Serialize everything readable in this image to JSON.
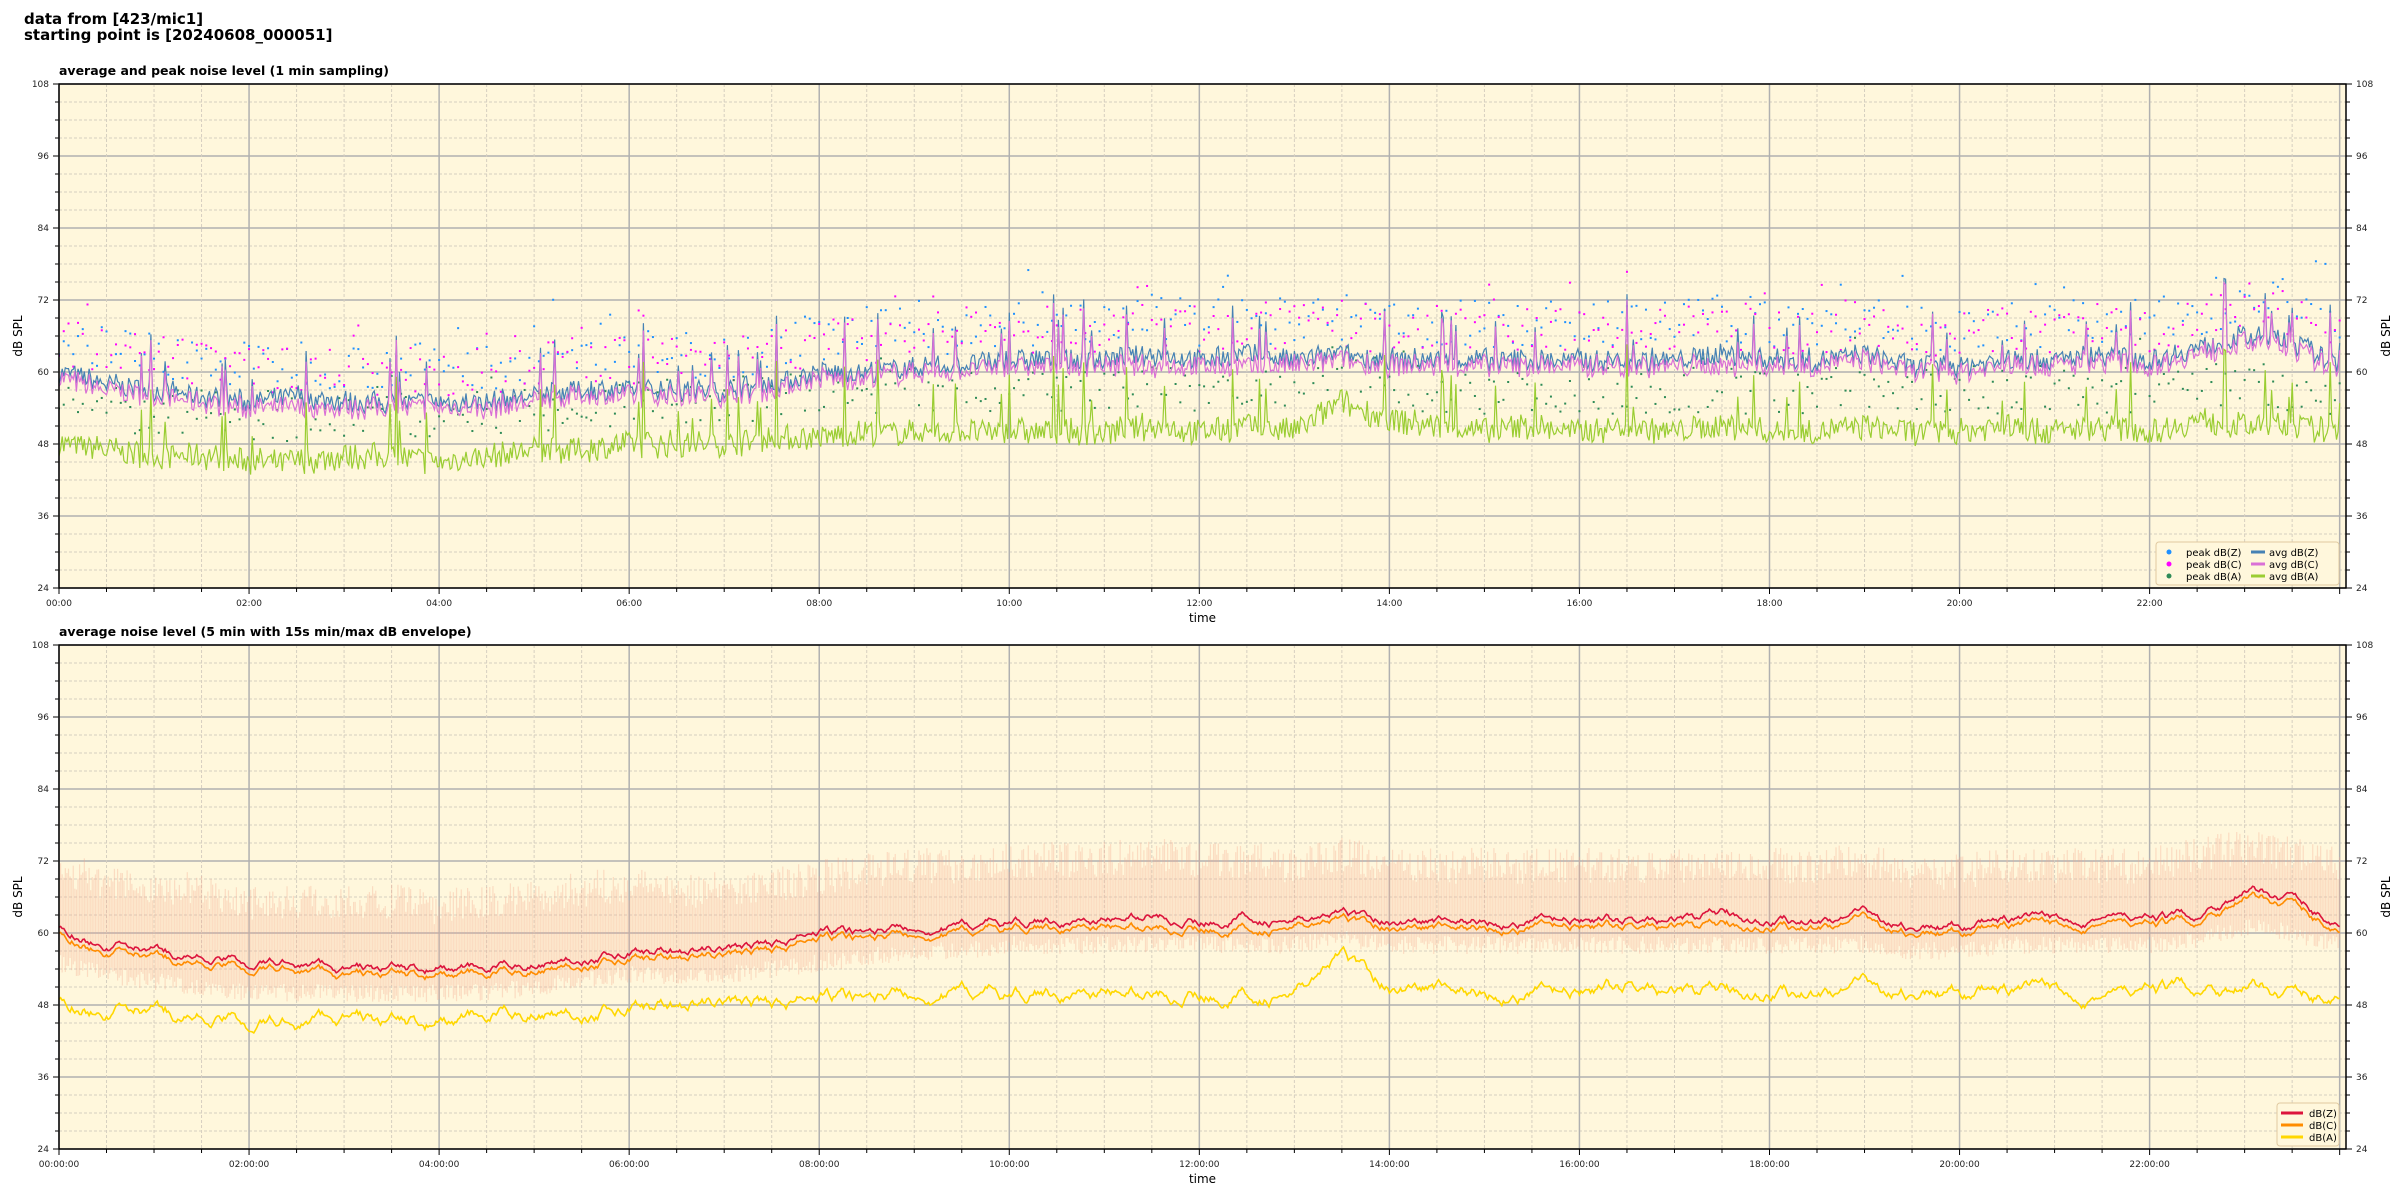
{
  "header": {
    "line1": "data from [423/mic1]",
    "line2": "starting point is [20240608_000051]"
  },
  "chart_data": [
    {
      "type": "line+scatter",
      "title": "average and peak noise level (1 min sampling)",
      "xlabel": "time",
      "ylabel": "dB SPL",
      "ylim": [
        24,
        108
      ],
      "yticks": [
        24,
        36,
        48,
        60,
        72,
        84,
        96,
        108
      ],
      "xlim": [
        "00:00",
        "24:04"
      ],
      "xticks": [
        "00:00",
        "02:00",
        "04:00",
        "06:00",
        "08:00",
        "10:00",
        "12:00",
        "14:00",
        "16:00",
        "18:00",
        "20:00",
        "22:00"
      ],
      "grid": true,
      "background": "#fff7dc",
      "legend_placement": "lower-right",
      "x": [
        "00:00",
        "00:30",
        "01:00",
        "01:30",
        "02:00",
        "02:30",
        "03:00",
        "03:30",
        "04:00",
        "04:30",
        "05:00",
        "05:30",
        "06:00",
        "06:30",
        "07:00",
        "07:30",
        "08:00",
        "08:30",
        "09:00",
        "09:30",
        "10:00",
        "10:30",
        "11:00",
        "11:30",
        "12:00",
        "12:30",
        "13:00",
        "13:30",
        "14:00",
        "14:30",
        "15:00",
        "15:30",
        "16:00",
        "16:30",
        "17:00",
        "17:30",
        "18:00",
        "18:30",
        "19:00",
        "19:30",
        "20:00",
        "20:30",
        "21:00",
        "21:30",
        "22:00",
        "22:30",
        "23:00",
        "23:30",
        "24:00"
      ],
      "series": [
        {
          "name": "peak dB(Z)",
          "kind": "scatter",
          "color": "#1e90ff",
          "values": [
            66,
            64,
            63,
            62,
            61,
            62,
            61,
            61,
            61,
            61,
            62,
            63,
            63,
            63,
            63,
            64,
            66,
            66,
            67,
            67,
            68,
            68,
            68,
            69,
            68,
            69,
            68,
            69,
            68,
            68,
            68,
            68,
            68,
            68,
            68,
            69,
            68,
            68,
            69,
            67,
            67,
            68,
            68,
            69,
            68,
            70,
            72,
            71,
            67
          ]
        },
        {
          "name": "peak dB(C)",
          "kind": "scatter",
          "color": "#ff00ff",
          "values": [
            65,
            63,
            62,
            61,
            60,
            61,
            60,
            60,
            60,
            60,
            61,
            62,
            62,
            62,
            62,
            63,
            65,
            65,
            66,
            66,
            67,
            67,
            67,
            68,
            67,
            68,
            67,
            68,
            67,
            67,
            67,
            67,
            67,
            67,
            67,
            68,
            67,
            67,
            68,
            66,
            66,
            67,
            67,
            68,
            67,
            69,
            71,
            70,
            66
          ]
        },
        {
          "name": "peak dB(A)",
          "kind": "scatter",
          "color": "#2e8b57",
          "values": [
            55,
            54,
            53,
            53,
            52,
            52,
            53,
            53,
            52,
            53,
            54,
            54,
            55,
            55,
            55,
            56,
            56,
            57,
            57,
            57,
            57,
            57,
            57,
            57,
            57,
            57,
            57,
            61,
            58,
            57,
            57,
            57,
            57,
            57,
            57,
            57,
            57,
            57,
            57,
            57,
            57,
            57,
            57,
            57,
            57,
            58,
            58,
            57,
            56
          ]
        },
        {
          "name": "avg dB(Z)",
          "kind": "line",
          "color": "#4682b4",
          "values": [
            60,
            58,
            57,
            56,
            55,
            56,
            55,
            55,
            55,
            55,
            56,
            57,
            57,
            57,
            57,
            58,
            60,
            60,
            61,
            61,
            62,
            62,
            62,
            63,
            62,
            63,
            62,
            63,
            62,
            62,
            62,
            62,
            62,
            62,
            62,
            63,
            62,
            62,
            63,
            61,
            61,
            62,
            62,
            63,
            62,
            64,
            66,
            65,
            61
          ]
        },
        {
          "name": "avg dB(C)",
          "kind": "line",
          "color": "#da70d6",
          "values": [
            59,
            57,
            56,
            55,
            54,
            54,
            54,
            54,
            54,
            54,
            55,
            56,
            56,
            56,
            56,
            57,
            59,
            59,
            60,
            60,
            61,
            61,
            61,
            61,
            61,
            61,
            61,
            62,
            61,
            61,
            61,
            61,
            61,
            61,
            61,
            61,
            61,
            61,
            62,
            60,
            60,
            61,
            61,
            62,
            61,
            63,
            65,
            64,
            60
          ]
        },
        {
          "name": "avg dB(A)",
          "kind": "line",
          "color": "#9acd32",
          "values": [
            48,
            47,
            46,
            46,
            45,
            45,
            46,
            46,
            45,
            46,
            47,
            47,
            48,
            48,
            48,
            49,
            49,
            50,
            50,
            50,
            50,
            50,
            50,
            51,
            50,
            51,
            50,
            55,
            52,
            51,
            50,
            51,
            50,
            51,
            50,
            51,
            50,
            50,
            51,
            50,
            50,
            51,
            50,
            51,
            50,
            52,
            51,
            51,
            50
          ]
        }
      ]
    },
    {
      "type": "line",
      "title": "average noise level (5 min with 15s min/max dB envelope)",
      "xlabel": "time",
      "ylabel": "dB SPL",
      "ylim": [
        24,
        108
      ],
      "yticks": [
        24,
        36,
        48,
        60,
        72,
        84,
        96,
        108
      ],
      "xlim": [
        "00:00",
        "24:04"
      ],
      "xticks": [
        "00:00:00",
        "02:00:00",
        "04:00:00",
        "06:00:00",
        "08:00:00",
        "10:00:00",
        "12:00:00",
        "14:00:00",
        "16:00:00",
        "18:00:00",
        "20:00:00",
        "22:00:00"
      ],
      "grid": true,
      "background": "#fff7dc",
      "legend_placement": "lower-right",
      "envelope_color": "#f4a98f",
      "x": [
        "00:00",
        "00:30",
        "01:00",
        "01:30",
        "02:00",
        "02:30",
        "03:00",
        "03:30",
        "04:00",
        "04:30",
        "05:00",
        "05:30",
        "06:00",
        "06:30",
        "07:00",
        "07:30",
        "08:00",
        "08:30",
        "09:00",
        "09:30",
        "10:00",
        "10:30",
        "11:00",
        "11:30",
        "12:00",
        "12:30",
        "13:00",
        "13:30",
        "14:00",
        "14:30",
        "15:00",
        "15:30",
        "16:00",
        "16:30",
        "17:00",
        "17:30",
        "18:00",
        "18:30",
        "19:00",
        "19:30",
        "20:00",
        "20:30",
        "21:00",
        "21:30",
        "22:00",
        "22:30",
        "23:00",
        "23:30",
        "24:00"
      ],
      "envelope_max": [
        70,
        67,
        66,
        66,
        64,
        64,
        64,
        64,
        63,
        64,
        65,
        66,
        67,
        66,
        66,
        67,
        68,
        69,
        70,
        70,
        71,
        71,
        71,
        72,
        71,
        71,
        70,
        72,
        70,
        70,
        70,
        70,
        70,
        70,
        70,
        71,
        70,
        70,
        71,
        69,
        69,
        70,
        70,
        70,
        70,
        72,
        73,
        72,
        70
      ],
      "envelope_min": [
        55,
        53,
        52,
        51,
        50,
        50,
        50,
        50,
        50,
        50,
        51,
        52,
        53,
        53,
        53,
        54,
        55,
        56,
        57,
        57,
        58,
        58,
        58,
        58,
        58,
        58,
        58,
        59,
        58,
        58,
        58,
        58,
        58,
        58,
        58,
        58,
        58,
        58,
        58,
        57,
        57,
        58,
        58,
        58,
        58,
        59,
        61,
        60,
        58
      ],
      "series": [
        {
          "name": "dB(Z)",
          "color": "#dc143c",
          "values": [
            61,
            58,
            57,
            56,
            55,
            55,
            54,
            54,
            54,
            54,
            55,
            56,
            57,
            57,
            57,
            58,
            60,
            60,
            61,
            61,
            62,
            62,
            62,
            63,
            62,
            63,
            62,
            63,
            62,
            62,
            62,
            62,
            62,
            62,
            62,
            63,
            62,
            62,
            63,
            61,
            61,
            62,
            62,
            63,
            62,
            63,
            67,
            66,
            61
          ]
        },
        {
          "name": "dB(C)",
          "color": "#ff8c00",
          "values": [
            60,
            57,
            56,
            55,
            54,
            54,
            53,
            53,
            53,
            53,
            54,
            55,
            56,
            56,
            56,
            57,
            59,
            59,
            60,
            60,
            61,
            61,
            61,
            61,
            61,
            61,
            61,
            62,
            61,
            61,
            61,
            61,
            61,
            61,
            61,
            61,
            61,
            61,
            62,
            60,
            60,
            61,
            61,
            62,
            61,
            62,
            66,
            65,
            60
          ]
        },
        {
          "name": "dB(A)",
          "color": "#ffd700",
          "values": [
            49,
            47,
            47,
            46,
            45,
            45,
            46,
            45,
            45,
            46,
            47,
            47,
            48,
            48,
            48,
            48,
            49,
            49,
            50,
            50,
            50,
            50,
            50,
            50,
            50,
            50,
            50,
            56,
            51,
            51,
            50,
            50,
            50,
            51,
            50,
            50,
            50,
            50,
            51,
            50,
            50,
            50,
            50,
            50,
            50,
            51,
            51,
            50,
            49
          ]
        }
      ]
    }
  ]
}
